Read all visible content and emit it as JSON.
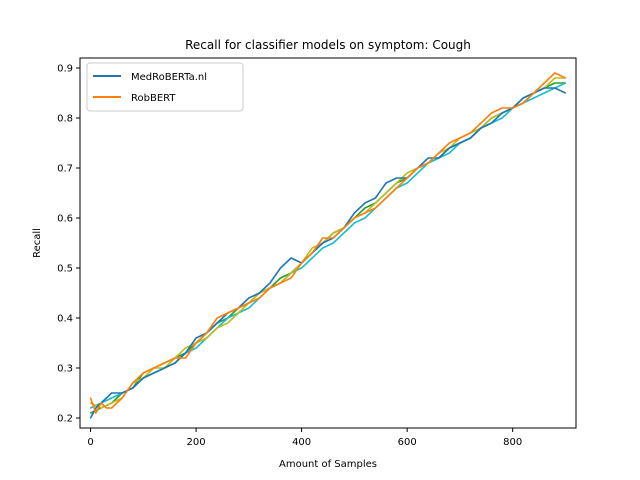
{
  "chart_data": {
    "type": "line",
    "title": "Recall for classifier models on symptom: Cough",
    "xlabel": "Amount of Samples",
    "ylabel": "Recall",
    "xlim": [
      -20,
      920
    ],
    "ylim": [
      0.18,
      0.92
    ],
    "xticks": [
      0,
      200,
      400,
      600,
      800
    ],
    "yticks": [
      0.2,
      0.3,
      0.4,
      0.5,
      0.6,
      0.7,
      0.8,
      0.9
    ],
    "grid": false,
    "legend_position": "top-left",
    "series": [
      {
        "name": "MedRoBERTa.nl",
        "color": "#1f77b4",
        "x": [
          0,
          10,
          20,
          30,
          40,
          60,
          80,
          100,
          120,
          140,
          160,
          180,
          200,
          220,
          240,
          260,
          280,
          300,
          320,
          340,
          360,
          380,
          400,
          420,
          440,
          460,
          480,
          500,
          520,
          540,
          560,
          580,
          600,
          620,
          640,
          660,
          680,
          700,
          720,
          740,
          760,
          780,
          800,
          820,
          840,
          860,
          880,
          900
        ],
        "y": [
          0.2,
          0.22,
          0.23,
          0.24,
          0.25,
          0.25,
          0.26,
          0.28,
          0.29,
          0.3,
          0.31,
          0.33,
          0.36,
          0.37,
          0.39,
          0.41,
          0.42,
          0.44,
          0.45,
          0.47,
          0.5,
          0.52,
          0.51,
          0.53,
          0.55,
          0.56,
          0.58,
          0.61,
          0.63,
          0.64,
          0.67,
          0.68,
          0.68,
          0.7,
          0.72,
          0.72,
          0.74,
          0.75,
          0.76,
          0.78,
          0.79,
          0.81,
          0.82,
          0.84,
          0.85,
          0.86,
          0.86,
          0.85
        ]
      },
      {
        "name": "RobBERT",
        "color": "#ff7f0e",
        "x": [
          0,
          10,
          20,
          30,
          40,
          60,
          80,
          100,
          120,
          140,
          160,
          180,
          200,
          220,
          240,
          260,
          280,
          300,
          320,
          340,
          360,
          380,
          400,
          420,
          440,
          460,
          480,
          500,
          520,
          540,
          560,
          580,
          600,
          620,
          640,
          660,
          680,
          700,
          720,
          740,
          760,
          780,
          800,
          820,
          840,
          860,
          880,
          900
        ],
        "y": [
          0.24,
          0.21,
          0.23,
          0.22,
          0.22,
          0.24,
          0.27,
          0.29,
          0.3,
          0.31,
          0.32,
          0.32,
          0.35,
          0.37,
          0.4,
          0.41,
          0.42,
          0.43,
          0.44,
          0.46,
          0.47,
          0.48,
          0.51,
          0.53,
          0.56,
          0.56,
          0.58,
          0.6,
          0.61,
          0.62,
          0.64,
          0.66,
          0.68,
          0.7,
          0.71,
          0.73,
          0.75,
          0.76,
          0.77,
          0.79,
          0.81,
          0.82,
          0.82,
          0.83,
          0.85,
          0.87,
          0.89,
          0.88
        ]
      },
      {
        "color": "#2ca02c",
        "x": [
          0,
          20,
          40,
          60,
          80,
          100,
          120,
          140,
          160,
          180,
          200,
          220,
          240,
          260,
          280,
          300,
          320,
          340,
          360,
          380,
          400,
          420,
          440,
          460,
          480,
          500,
          520,
          540,
          560,
          580,
          600,
          620,
          640,
          660,
          680,
          700,
          720,
          740,
          760,
          780,
          800,
          820,
          840,
          860,
          880,
          900
        ],
        "y": [
          0.21,
          0.22,
          0.23,
          0.25,
          0.26,
          0.29,
          0.3,
          0.31,
          0.32,
          0.33,
          0.35,
          0.37,
          0.39,
          0.4,
          0.42,
          0.43,
          0.45,
          0.46,
          0.48,
          0.49,
          0.51,
          0.53,
          0.55,
          0.57,
          0.58,
          0.6,
          0.62,
          0.63,
          0.65,
          0.67,
          0.68,
          0.7,
          0.71,
          0.72,
          0.74,
          0.75,
          0.76,
          0.78,
          0.8,
          0.81,
          0.82,
          0.83,
          0.85,
          0.86,
          0.87,
          0.87
        ]
      },
      {
        "color": "#17becf",
        "x": [
          0,
          20,
          40,
          60,
          80,
          100,
          120,
          140,
          160,
          180,
          200,
          220,
          240,
          260,
          280,
          300,
          320,
          340,
          360,
          380,
          400,
          420,
          440,
          460,
          480,
          500,
          520,
          540,
          560,
          580,
          600,
          620,
          640,
          660,
          680,
          700,
          720,
          740,
          760,
          780,
          800,
          820,
          840,
          860,
          880,
          900
        ],
        "y": [
          0.22,
          0.23,
          0.24,
          0.25,
          0.26,
          0.28,
          0.29,
          0.3,
          0.31,
          0.33,
          0.34,
          0.36,
          0.38,
          0.4,
          0.41,
          0.42,
          0.44,
          0.46,
          0.47,
          0.49,
          0.5,
          0.52,
          0.54,
          0.55,
          0.57,
          0.59,
          0.6,
          0.62,
          0.64,
          0.66,
          0.67,
          0.69,
          0.71,
          0.72,
          0.73,
          0.75,
          0.76,
          0.78,
          0.79,
          0.8,
          0.82,
          0.83,
          0.84,
          0.85,
          0.86,
          0.87
        ]
      },
      {
        "color": "#bcbd22",
        "x": [
          0,
          20,
          40,
          60,
          80,
          100,
          120,
          140,
          160,
          180,
          200,
          220,
          240,
          260,
          280,
          300,
          320,
          340,
          360,
          380,
          400,
          420,
          440,
          460,
          480,
          500,
          520,
          540,
          560,
          580,
          600,
          620,
          640,
          660,
          680,
          700,
          720,
          740,
          760,
          780,
          800,
          820,
          840,
          860,
          880,
          900
        ],
        "y": [
          0.23,
          0.22,
          0.23,
          0.24,
          0.27,
          0.28,
          0.3,
          0.3,
          0.32,
          0.34,
          0.35,
          0.36,
          0.38,
          0.39,
          0.41,
          0.43,
          0.45,
          0.46,
          0.47,
          0.49,
          0.51,
          0.54,
          0.55,
          0.57,
          0.58,
          0.6,
          0.61,
          0.63,
          0.65,
          0.67,
          0.69,
          0.7,
          0.71,
          0.73,
          0.74,
          0.76,
          0.77,
          0.78,
          0.8,
          0.81,
          0.82,
          0.84,
          0.85,
          0.86,
          0.88,
          0.88
        ]
      }
    ]
  }
}
